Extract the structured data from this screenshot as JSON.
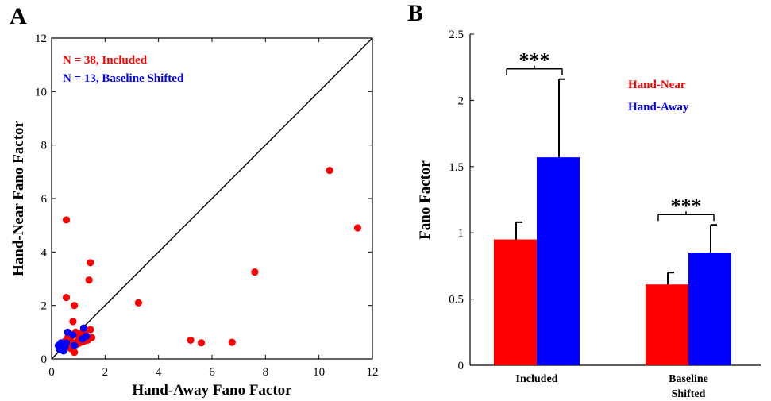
{
  "chart_data": [
    {
      "panel": "A",
      "type": "scatter",
      "xlabel": "Hand-Away Fano Factor",
      "ylabel": "Hand-Near Fano Factor",
      "xlim": [
        0,
        12
      ],
      "ylim": [
        0,
        12
      ],
      "xticks": [
        "0",
        "2",
        "4",
        "6",
        "8",
        "10",
        "12"
      ],
      "yticks": [
        "0",
        "2",
        "4",
        "6",
        "8",
        "10",
        "12"
      ],
      "grid": false,
      "unity_line": true,
      "legend_position": "top-left",
      "series": [
        {
          "name": "N = 38, Included",
          "color": "#ff0000",
          "points": [
            [
              0.55,
              5.2
            ],
            [
              0.55,
              2.3
            ],
            [
              0.85,
              2.0
            ],
            [
              0.8,
              1.4
            ],
            [
              1.45,
              3.6
            ],
            [
              1.4,
              2.95
            ],
            [
              10.4,
              7.05
            ],
            [
              11.45,
              4.9
            ],
            [
              7.6,
              3.25
            ],
            [
              3.25,
              2.1
            ],
            [
              5.2,
              0.7
            ],
            [
              5.6,
              0.6
            ],
            [
              6.75,
              0.62
            ],
            [
              0.85,
              0.25
            ],
            [
              0.5,
              0.65
            ],
            [
              0.6,
              0.8
            ],
            [
              0.7,
              0.5
            ],
            [
              0.75,
              0.85
            ],
            [
              0.8,
              0.6
            ],
            [
              0.9,
              1.0
            ],
            [
              1.0,
              0.7
            ],
            [
              1.05,
              0.6
            ],
            [
              1.1,
              0.95
            ],
            [
              1.2,
              0.65
            ],
            [
              1.25,
              1.0
            ],
            [
              1.3,
              0.8
            ],
            [
              1.35,
              0.7
            ],
            [
              1.45,
              1.1
            ],
            [
              1.5,
              0.8
            ],
            [
              0.6,
              0.55
            ],
            [
              0.65,
              0.95
            ],
            [
              0.95,
              0.55
            ],
            [
              1.15,
              0.75
            ],
            [
              0.4,
              0.35
            ],
            [
              0.5,
              0.45
            ],
            [
              1.2,
              1.05
            ],
            [
              0.7,
              0.4
            ],
            [
              1.0,
              0.9
            ]
          ]
        },
        {
          "name": "N = 13, Baseline Shifted",
          "color": "#0000ff",
          "points": [
            [
              0.25,
              0.5
            ],
            [
              0.3,
              0.35
            ],
            [
              0.4,
              0.55
            ],
            [
              0.45,
              0.3
            ],
            [
              0.5,
              0.45
            ],
            [
              0.55,
              0.6
            ],
            [
              0.6,
              1.0
            ],
            [
              0.8,
              0.9
            ],
            [
              0.85,
              0.5
            ],
            [
              1.2,
              1.15
            ],
            [
              1.3,
              0.85
            ],
            [
              1.15,
              0.75
            ],
            [
              0.35,
              0.6
            ]
          ]
        }
      ]
    },
    {
      "panel": "B",
      "type": "bar",
      "ylabel": "Fano Factor",
      "ylim": [
        0,
        2.5
      ],
      "yticks": [
        "0",
        "0.5",
        "1",
        "1.5",
        "2",
        "2.5"
      ],
      "categories": [
        "Included",
        "Baseline\nShifted"
      ],
      "legend_position": "top-right",
      "series": [
        {
          "name": "Hand-Near",
          "color": "#ff0000",
          "values": [
            0.95,
            0.61
          ],
          "errors": [
            0.13,
            0.09
          ]
        },
        {
          "name": "Hand-Away",
          "color": "#0000ff",
          "values": [
            1.57,
            0.85
          ],
          "errors": [
            0.59,
            0.21
          ]
        }
      ],
      "annotations": [
        "***",
        "***"
      ]
    }
  ]
}
